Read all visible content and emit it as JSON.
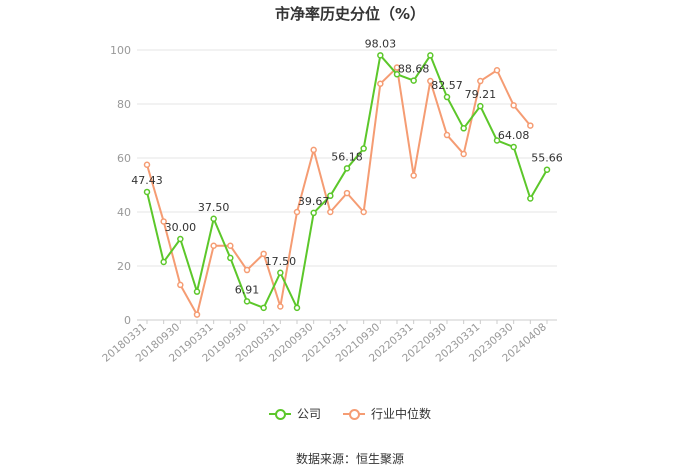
{
  "chart_data": {
    "type": "line",
    "title": "市净率历史分位（%）",
    "xlabel": "",
    "ylabel": "",
    "ylim": [
      0,
      100
    ],
    "yticks": [
      0,
      20,
      40,
      60,
      80,
      100
    ],
    "grid": "horizontal",
    "legend_placement": "bottom",
    "x": [
      "20180331",
      "20180630",
      "20180930",
      "20181231",
      "20190331",
      "20190630",
      "20190930",
      "20191231",
      "20200331",
      "20200630",
      "20200930",
      "20201231",
      "20210331",
      "20210630",
      "20210930",
      "20211231",
      "20220331",
      "20220630",
      "20220930",
      "20221231",
      "20230331",
      "20230630",
      "20230930",
      "20231231",
      "20240408"
    ],
    "x_tick_labels": [
      "20180331",
      "20180930",
      "20190331",
      "20190930",
      "20200331",
      "20200930",
      "20210331",
      "20210930",
      "20220331",
      "20220930",
      "20230331",
      "20230930",
      "20240408"
    ],
    "series": [
      {
        "name": "公司",
        "color": "#5cc72a",
        "values": [
          47.43,
          21.5,
          30.0,
          10.5,
          37.5,
          23.0,
          6.91,
          4.5,
          17.5,
          4.5,
          39.67,
          46.0,
          56.18,
          63.5,
          98.03,
          91.0,
          88.68,
          98.0,
          82.57,
          71.0,
          79.21,
          66.5,
          64.08,
          45.0,
          55.66
        ],
        "data_labels": {
          "0": "47.43",
          "2": "30.00",
          "4": "37.50",
          "6": "6.91",
          "8": "17.50",
          "10": "39.67",
          "12": "56.18",
          "14": "98.03",
          "16": "88.68",
          "18": "82.57",
          "20": "79.21",
          "22": "64.08",
          "24": "55.66"
        }
      },
      {
        "name": "行业中位数",
        "color": "#f59c73",
        "values": [
          57.5,
          36.5,
          13.0,
          2.0,
          27.5,
          27.5,
          18.5,
          24.5,
          5.0,
          40.0,
          63.0,
          40.0,
          47.0,
          40.0,
          87.5,
          93.5,
          53.5,
          88.5,
          68.5,
          61.5,
          88.5,
          92.5,
          79.5,
          72.0,
          null
        ]
      }
    ]
  },
  "source": "数据来源：恒生聚源"
}
